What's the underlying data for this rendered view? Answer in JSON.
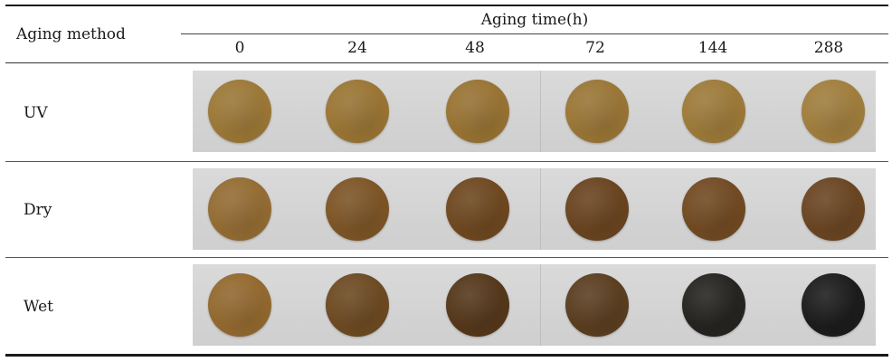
{
  "table": {
    "header_method": "Aging method",
    "header_time": "Aging time(h)",
    "time_columns": [
      "0",
      "24",
      "48",
      "72",
      "144",
      "288"
    ],
    "rows": [
      {
        "label": "UV",
        "samples": [
          {
            "time": "0",
            "color": "#9c7837"
          },
          {
            "time": "24",
            "color": "#9a7534"
          },
          {
            "time": "48",
            "color": "#987333"
          },
          {
            "time": "72",
            "color": "#9a7636"
          },
          {
            "time": "144",
            "color": "#9d7a39"
          },
          {
            "time": "288",
            "color": "#a07e3d"
          }
        ]
      },
      {
        "label": "Dry",
        "samples": [
          {
            "time": "0",
            "color": "#946c33"
          },
          {
            "time": "24",
            "color": "#7d5526"
          },
          {
            "time": "48",
            "color": "#6e4820"
          },
          {
            "time": "72",
            "color": "#6a4420"
          },
          {
            "time": "144",
            "color": "#714a22"
          },
          {
            "time": "288",
            "color": "#6a4522"
          }
        ]
      },
      {
        "label": "Wet",
        "samples": [
          {
            "time": "0",
            "color": "#93692f"
          },
          {
            "time": "24",
            "color": "#6d4a22"
          },
          {
            "time": "48",
            "color": "#55381b"
          },
          {
            "time": "72",
            "color": "#5b3e20"
          },
          {
            "time": "144",
            "color": "#262421"
          },
          {
            "time": "288",
            "color": "#1d1c1c"
          }
        ]
      }
    ]
  }
}
